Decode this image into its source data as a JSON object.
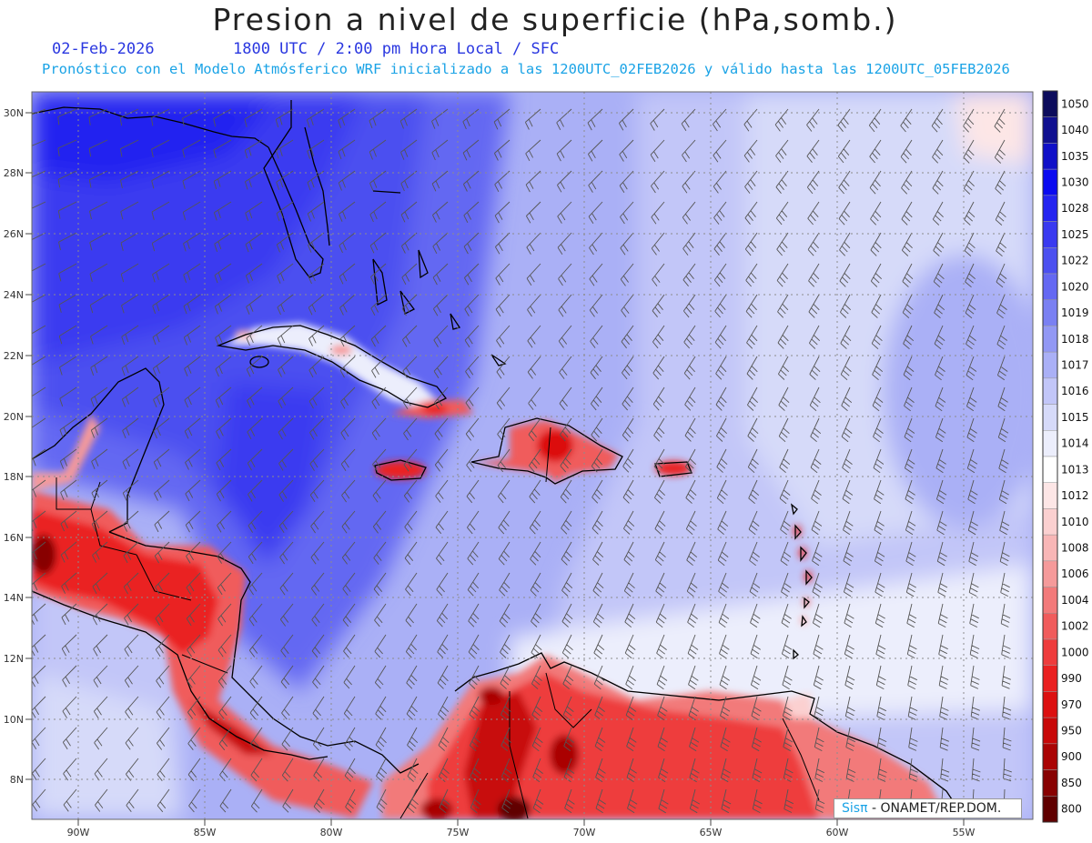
{
  "header": {
    "title": "Presion a nivel de superficie (hPa,somb.)",
    "date": "02-Feb-2026",
    "time_line": "1800 UTC / 2:00 pm Hora Local / SFC",
    "forecast_line": "Pronóstico con el Modelo Atmósferico WRF inicializado a las 1200UTC_02FEB2026 y válido hasta las  1200UTC_05FEB2026"
  },
  "map": {
    "lat_labels": [
      "30N",
      "28N",
      "26N",
      "24N",
      "22N",
      "20N",
      "18N",
      "16N",
      "14N",
      "12N",
      "10N",
      "8N"
    ],
    "lon_labels": [
      "90W",
      "85W",
      "80W",
      "75W",
      "70W",
      "65W",
      "60W",
      "55W"
    ]
  },
  "colorbar": {
    "levels": [
      {
        "label": "1050",
        "color": "#0c0c5c"
      },
      {
        "label": "1040",
        "color": "#101090"
      },
      {
        "label": "1035",
        "color": "#1010c8"
      },
      {
        "label": "1030",
        "color": "#0a0af0"
      },
      {
        "label": "1028",
        "color": "#2424f0"
      },
      {
        "label": "1025",
        "color": "#3a3af0"
      },
      {
        "label": "1022",
        "color": "#4c50f0"
      },
      {
        "label": "1020",
        "color": "#6468f2"
      },
      {
        "label": "1019",
        "color": "#7a80f2"
      },
      {
        "label": "1018",
        "color": "#9298f4"
      },
      {
        "label": "1017",
        "color": "#aab0f6"
      },
      {
        "label": "1016",
        "color": "#c2c6f8"
      },
      {
        "label": "1015",
        "color": "#d6daf9"
      },
      {
        "label": "1014",
        "color": "#eceefc"
      },
      {
        "label": "1013",
        "color": "#ffffff"
      },
      {
        "label": "1012",
        "color": "#fde6e6"
      },
      {
        "label": "1010",
        "color": "#fbd0d0"
      },
      {
        "label": "1008",
        "color": "#f8b6b6"
      },
      {
        "label": "1006",
        "color": "#f59a9a"
      },
      {
        "label": "1004",
        "color": "#f27a7a"
      },
      {
        "label": "1002",
        "color": "#f05c5c"
      },
      {
        "label": "1000",
        "color": "#ee3c3c"
      },
      {
        "label": "990",
        "color": "#ea2020"
      },
      {
        "label": "970",
        "color": "#dc1010"
      },
      {
        "label": "950",
        "color": "#c80808"
      },
      {
        "label": "900",
        "color": "#aa0404"
      },
      {
        "label": "850",
        "color": "#880202"
      },
      {
        "label": "800",
        "color": "#600000"
      }
    ]
  },
  "credit": {
    "brand": "Sisπ",
    "text": "- ONAMET/REP.DOM."
  },
  "colors": {
    "accent_blue": "#2a37e0",
    "accent_cyan": "#1aa3e6"
  }
}
